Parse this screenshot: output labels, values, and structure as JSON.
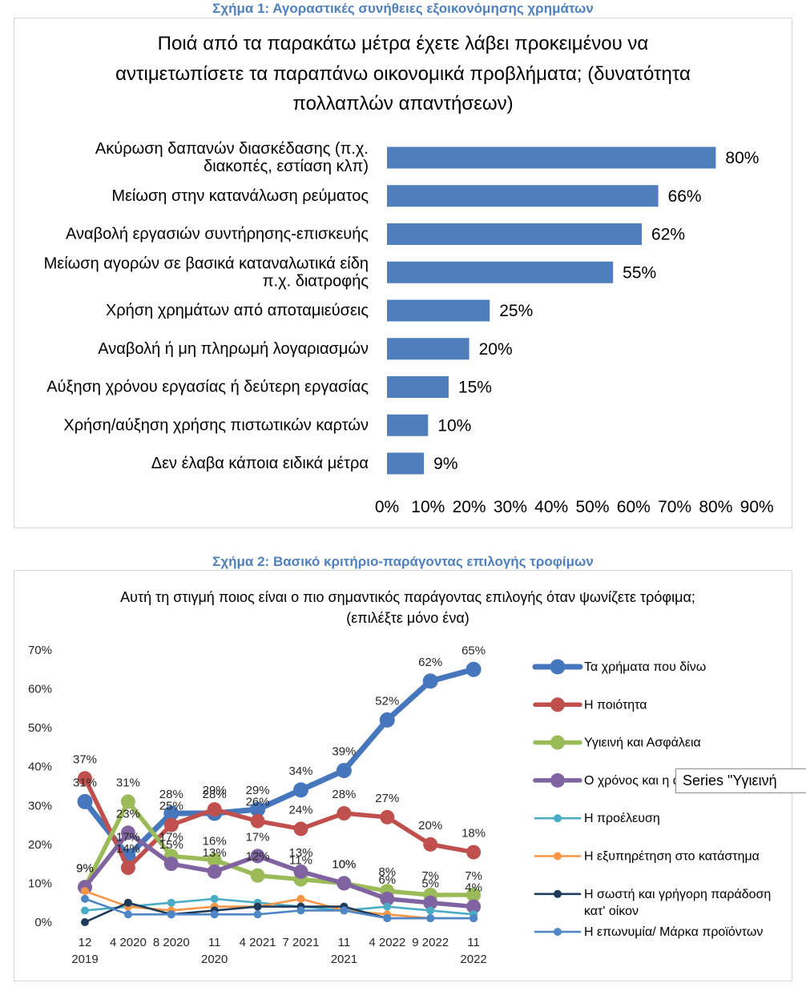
{
  "figure_1": {
    "caption": "Σχήμα 1: Αγοραστικές συνήθειες εξοικονόμησης χρημάτων"
  },
  "figure_2": {
    "caption": "Σχήμα 2: Βασικό κριτήριο-παράγοντας επιλογής τροφίμων"
  },
  "tooltip": {
    "text": "Series \"Υγιεινή"
  },
  "chart_data": [
    {
      "type": "bar",
      "orientation": "horizontal",
      "title": [
        "Ποιά από τα παρακάτω μέτρα έχετε λάβει προκειμένου να",
        "αντιμετωπίσετε τα παραπάνω οικονομικά προβλήματα; (δυνατότητα",
        "πολλαπλών απαντήσεων)"
      ],
      "categories": [
        "Ακύρωση δαπανών διασκέδασης (π.χ.\nδιακοπές, εστίαση κλπ)",
        "Μείωση στην κατανάλωση ρεύματος",
        "Αναβολή εργασιών συντήρησης-επισκευής",
        "Μείωση αγορών σε βασικά καταναλωτικά είδη\nπ.χ. διατροφής",
        "Χρήση χρημάτων από αποταμιεύσεις",
        "Αναβολή ή μη πληρωμή λογαριασμών",
        "Αύξηση χρόνου εργασίας ή δεύτερη εργασίας",
        "Χρήση/αύξηση χρήσης πιστωτικών καρτών",
        "Δεν έλαβα κάποια ειδικά μέτρα"
      ],
      "values": [
        80,
        66,
        62,
        55,
        25,
        20,
        15,
        10,
        9
      ],
      "data_labels": [
        "80%",
        "66%",
        "62%",
        "55%",
        "25%",
        "20%",
        "15%",
        "10%",
        "9%"
      ],
      "xlim": [
        0,
        90
      ],
      "x_ticks": [
        "0%",
        "10%",
        "20%",
        "30%",
        "40%",
        "50%",
        "60%",
        "70%",
        "80%",
        "90%"
      ],
      "grid": false,
      "bar_color": "#4E7EBB"
    },
    {
      "type": "line",
      "title": [
        "Αυτή τη στιγμή ποιος είναι ο πιο σημαντικός παράγοντας επιλογής όταν ψωνίζετε τρόφιμα;",
        "(επιλέξτε μόνο ένα)"
      ],
      "categories": [
        "12\n2019",
        "4 2020",
        "8 2020",
        "11\n2020",
        "4 2021",
        "7 2021",
        "11\n2021",
        "4 2022",
        "9 2022",
        "11\n2022"
      ],
      "ylim": [
        0,
        70
      ],
      "y_ticks": [
        "0%",
        "10%",
        "20%",
        "30%",
        "40%",
        "50%",
        "60%",
        "70%"
      ],
      "grid": false,
      "legend_position": "right",
      "series": [
        {
          "name": "Τα χρήματα που δίνω",
          "color": "#4677BD",
          "values": [
            31,
            17,
            28,
            28,
            29,
            34,
            39,
            52,
            62,
            65
          ],
          "data_labels": [
            "31%",
            "17%",
            "28%",
            "28%",
            "29%",
            "34%",
            "39%",
            "52%",
            "62%",
            "65%"
          ]
        },
        {
          "name": "Η ποιότητα",
          "color": "#C0504D",
          "values": [
            37,
            14,
            25,
            29,
            26,
            24,
            28,
            27,
            20,
            18
          ],
          "data_labels": [
            "37%",
            "14%",
            "25%",
            "29%",
            "26%",
            "24%",
            "28%",
            "27%",
            "20%",
            "18%"
          ]
        },
        {
          "name": "Υγιεινή και Ασφάλεια",
          "color": "#9BBB59",
          "values": [
            9,
            31,
            17,
            16,
            12,
            11,
            10,
            8,
            7,
            7
          ],
          "data_labels": [
            "9%",
            "31%",
            "17%",
            "16%",
            "12%",
            "11%",
            "10%",
            "8%",
            "7%",
            "7%"
          ]
        },
        {
          "name": "Ο χρόνος και η ά",
          "color": "#8064A2",
          "values": [
            9,
            23,
            15,
            13,
            17,
            13,
            10,
            6,
            5,
            4
          ],
          "data_labels": [
            "9%",
            "23%",
            "15%",
            "13%",
            "17%",
            "13%",
            "10%",
            "6%",
            "5%",
            "4%"
          ]
        },
        {
          "name": "Η προέλευση",
          "color": "#4BACC6",
          "values": [
            3,
            4,
            5,
            6,
            5,
            4,
            3,
            4,
            3,
            2
          ]
        },
        {
          "name": "Η εξυπηρέτηση στο κατάστημα",
          "color": "#F79646",
          "values": [
            8,
            4,
            3,
            4,
            4,
            6,
            3,
            2,
            1,
            1
          ]
        },
        {
          "name": "Η σωστή και γρήγορη παράδοση\nκατ' οίκον",
          "color": "#1F3B5C",
          "values": [
            0,
            5,
            2,
            3,
            4,
            4,
            4,
            1,
            1,
            1
          ]
        },
        {
          "name": "Η επωνυμία/ Μάρκα προϊόντων",
          "color": "#4F86C6",
          "values": [
            6,
            2,
            2,
            2,
            2,
            3,
            3,
            1,
            1,
            1
          ]
        }
      ]
    }
  ]
}
